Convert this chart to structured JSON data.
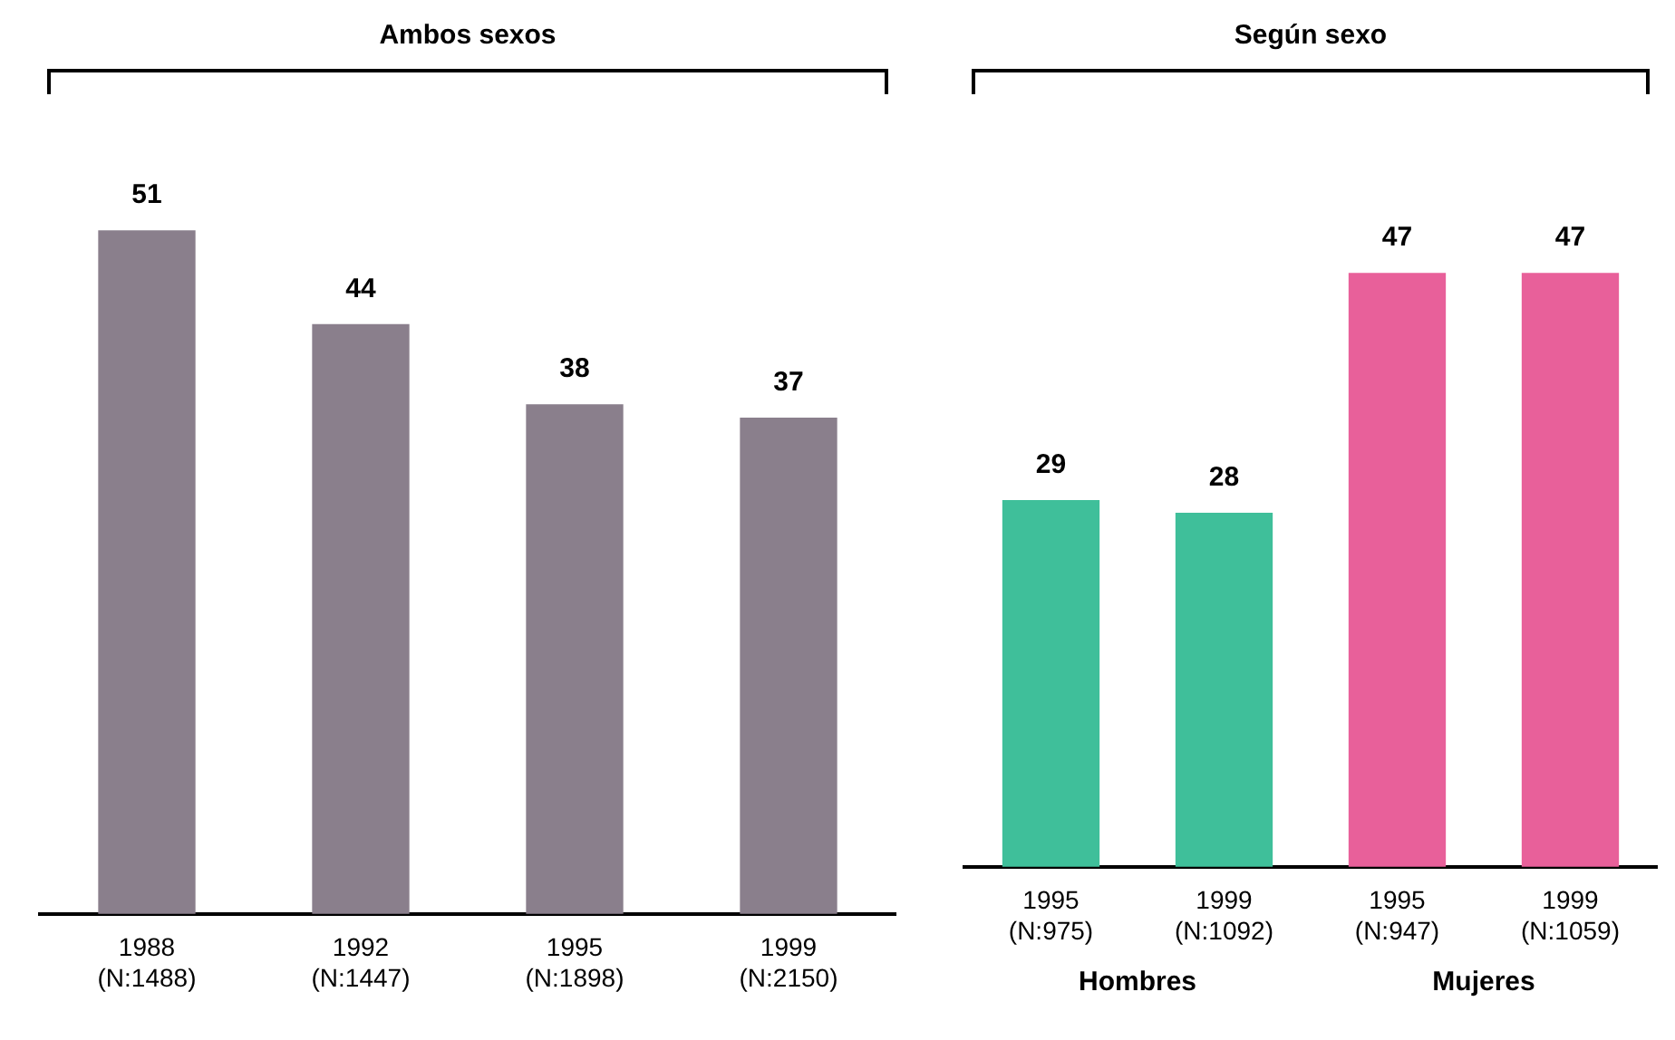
{
  "chart_data": [
    {
      "type": "bar",
      "title": "Ambos sexos",
      "categories": [
        "1988 (N:1488)",
        "1992 (N:1447)",
        "1995 (N:1898)",
        "1999 (N:2150)"
      ],
      "values": [
        51,
        44,
        38,
        37
      ],
      "color": "#8a7f8c",
      "data_labels": true
    },
    {
      "type": "bar",
      "title": "Según sexo",
      "categories": [
        "1995 (N:975)",
        "1999 (N:1092)",
        "1995 (N:947)",
        "1999 (N:1059)"
      ],
      "values": [
        29,
        28,
        47,
        47
      ],
      "colors": [
        "#3fbf9a",
        "#3fbf9a",
        "#e8609a",
        "#e8609a"
      ],
      "data_labels": true,
      "annotations": [
        "Hombres",
        "Mujeres"
      ]
    }
  ]
}
